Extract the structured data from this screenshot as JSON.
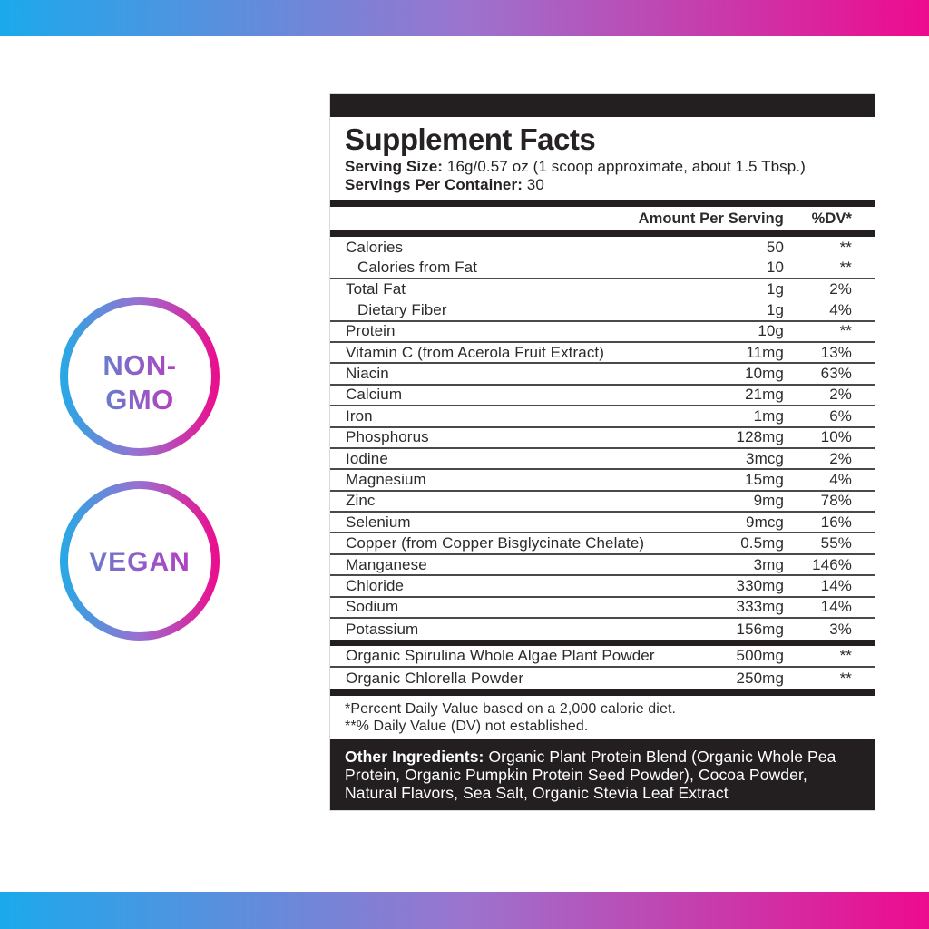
{
  "colors": {
    "blue": "#1ca9ec",
    "purple": "#9b74ce",
    "pink": "#ee0a8e",
    "dark": "#231f20",
    "badge_text_start": "#6a7ccd",
    "badge_text_end": "#b340c1"
  },
  "badges": [
    {
      "name": "non-gmo",
      "lines": [
        "NON-",
        "GMO"
      ]
    },
    {
      "name": "vegan",
      "lines": [
        "VEGAN"
      ]
    }
  ],
  "panel": {
    "title": "Supplement Facts",
    "serving_size_label": "Serving Size:",
    "serving_size_value": "16g/0.57 oz (1 scoop approximate, about 1.5 Tbsp.)",
    "servings_label": "Servings Per Container:",
    "servings_value": "30",
    "columns": {
      "amount": "Amount Per Serving",
      "dv": "%DV*"
    },
    "rows": [
      {
        "name": "Calories",
        "amount": "50",
        "dv": "**",
        "indent": false,
        "sep": false
      },
      {
        "name": "Calories from Fat",
        "amount": "10",
        "dv": "**",
        "indent": true,
        "sep": true
      },
      {
        "name": "Total Fat",
        "amount": "1g",
        "dv": "2%",
        "indent": false,
        "sep": false
      },
      {
        "name": "Dietary Fiber",
        "amount": "1g",
        "dv": "4%",
        "indent": true,
        "sep": true
      },
      {
        "name": "Protein",
        "amount": "10g",
        "dv": "**",
        "indent": false,
        "sep": true
      },
      {
        "name": "Vitamin C (from Acerola Fruit Extract)",
        "amount": "11mg",
        "dv": "13%",
        "indent": false,
        "sep": true
      },
      {
        "name": "Niacin",
        "amount": "10mg",
        "dv": "63%",
        "indent": false,
        "sep": true
      },
      {
        "name": "Calcium",
        "amount": "21mg",
        "dv": "2%",
        "indent": false,
        "sep": true
      },
      {
        "name": "Iron",
        "amount": "1mg",
        "dv": "6%",
        "indent": false,
        "sep": true
      },
      {
        "name": "Phosphorus",
        "amount": "128mg",
        "dv": "10%",
        "indent": false,
        "sep": true
      },
      {
        "name": "Iodine",
        "amount": "3mcg",
        "dv": "2%",
        "indent": false,
        "sep": true
      },
      {
        "name": "Magnesium",
        "amount": "15mg",
        "dv": "4%",
        "indent": false,
        "sep": true
      },
      {
        "name": "Zinc",
        "amount": "9mg",
        "dv": "78%",
        "indent": false,
        "sep": true
      },
      {
        "name": "Selenium",
        "amount": "9mcg",
        "dv": "16%",
        "indent": false,
        "sep": true
      },
      {
        "name": "Copper (from Copper Bisglycinate Chelate)",
        "amount": "0.5mg",
        "dv": "55%",
        "indent": false,
        "sep": true
      },
      {
        "name": "Manganese",
        "amount": "3mg",
        "dv": "146%",
        "indent": false,
        "sep": true
      },
      {
        "name": "Chloride",
        "amount": "330mg",
        "dv": "14%",
        "indent": false,
        "sep": true
      },
      {
        "name": "Sodium",
        "amount": "333mg",
        "dv": "14%",
        "indent": false,
        "sep": true
      },
      {
        "name": "Potassium",
        "amount": "156mg",
        "dv": "3%",
        "indent": false,
        "sep": false
      }
    ],
    "blend_rows": [
      {
        "name": "Organic Spirulina Whole Algae Plant Powder",
        "amount": "500mg",
        "dv": "**",
        "indent": false,
        "sep": true
      },
      {
        "name": "Organic Chlorella Powder",
        "amount": "250mg",
        "dv": "**",
        "indent": false,
        "sep": false
      }
    ],
    "footnotes": [
      "*Percent Daily Value based on a 2,000 calorie diet.",
      "**% Daily Value (DV) not established."
    ],
    "other_ingredients_label": "Other Ingredients:",
    "other_ingredients_text": "Organic Plant Protein Blend (Organic Whole Pea Protein, Organic Pumpkin Protein Seed Powder), Cocoa Powder, Natural Flavors, Sea Salt, Organic Stevia Leaf Extract"
  }
}
